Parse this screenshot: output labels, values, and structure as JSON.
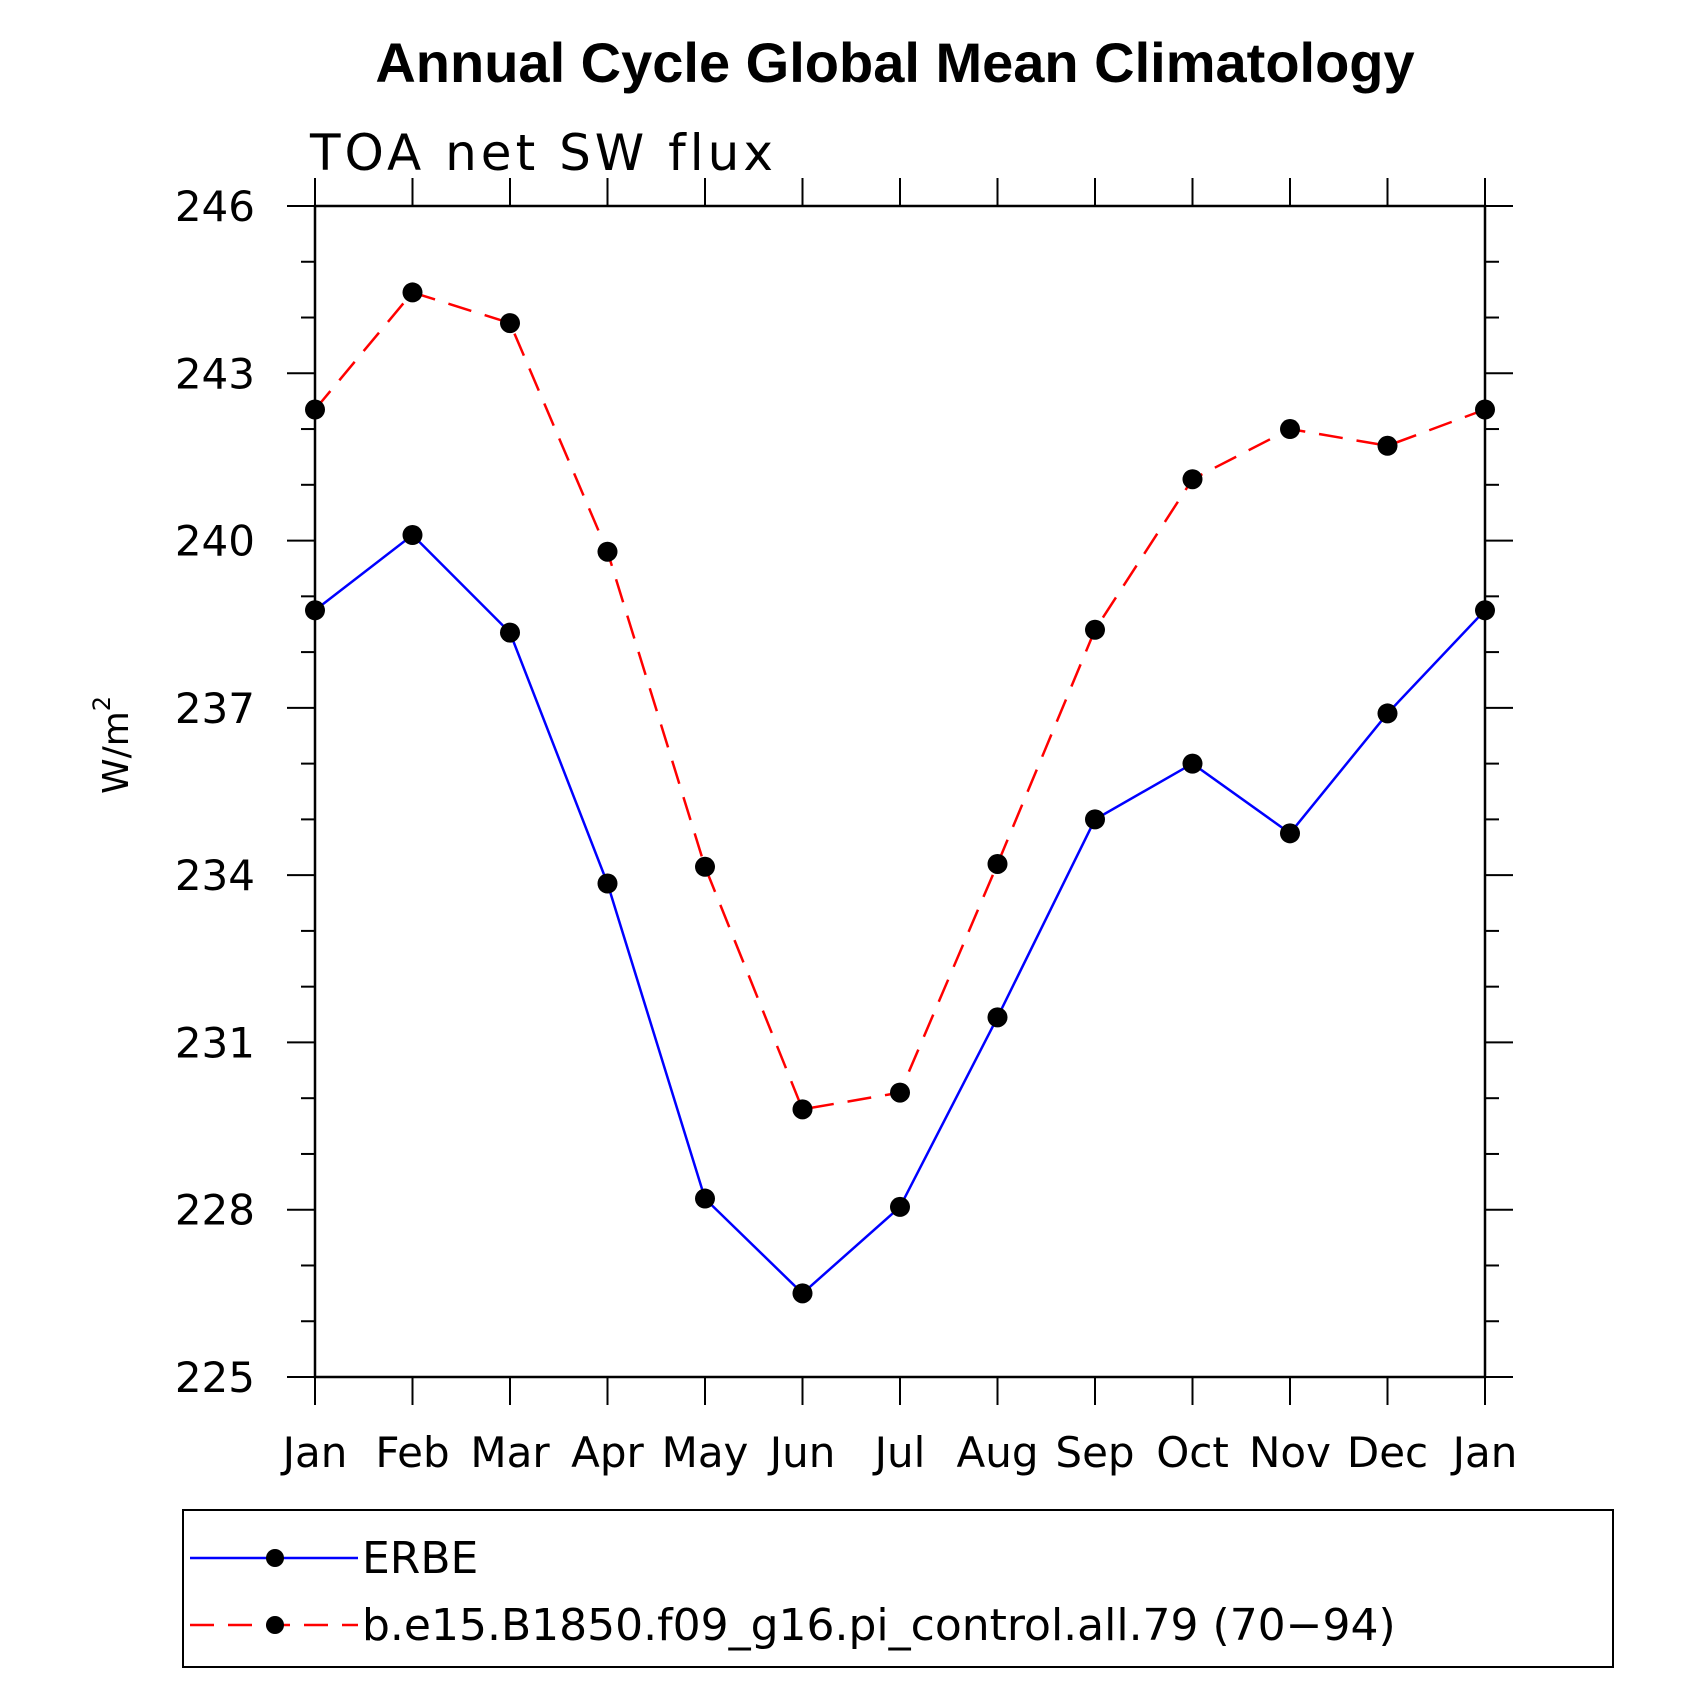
{
  "chart_data": {
    "type": "line",
    "title": "Annual Cycle Global Mean Climatology",
    "subtitle": "TOA net SW flux",
    "ylabel": "W/m",
    "ylabel_superscript": "2",
    "xlabel": "",
    "categories": [
      "Jan",
      "Feb",
      "Mar",
      "Apr",
      "May",
      "Jun",
      "Jul",
      "Aug",
      "Sep",
      "Oct",
      "Nov",
      "Dec",
      "Jan"
    ],
    "ylim": [
      225,
      246
    ],
    "yticks": [
      225,
      228,
      231,
      234,
      237,
      240,
      243,
      246
    ],
    "grid": false,
    "legend_position": "bottom",
    "series": [
      {
        "name": "ERBE",
        "color": "#0000ff",
        "line_style": "solid",
        "values": [
          238.75,
          240.1,
          238.35,
          233.85,
          228.2,
          226.5,
          228.05,
          231.45,
          235.0,
          236.0,
          234.75,
          236.9,
          238.75
        ]
      },
      {
        "name": "b.e15.B1850.f09_g16.pi_control.all.79 (70−94)",
        "color": "#ff0000",
        "line_style": "dashed",
        "values": [
          242.35,
          244.45,
          243.9,
          239.8,
          234.15,
          229.8,
          230.1,
          234.2,
          238.4,
          241.1,
          242.0,
          241.7,
          242.35
        ]
      }
    ]
  }
}
